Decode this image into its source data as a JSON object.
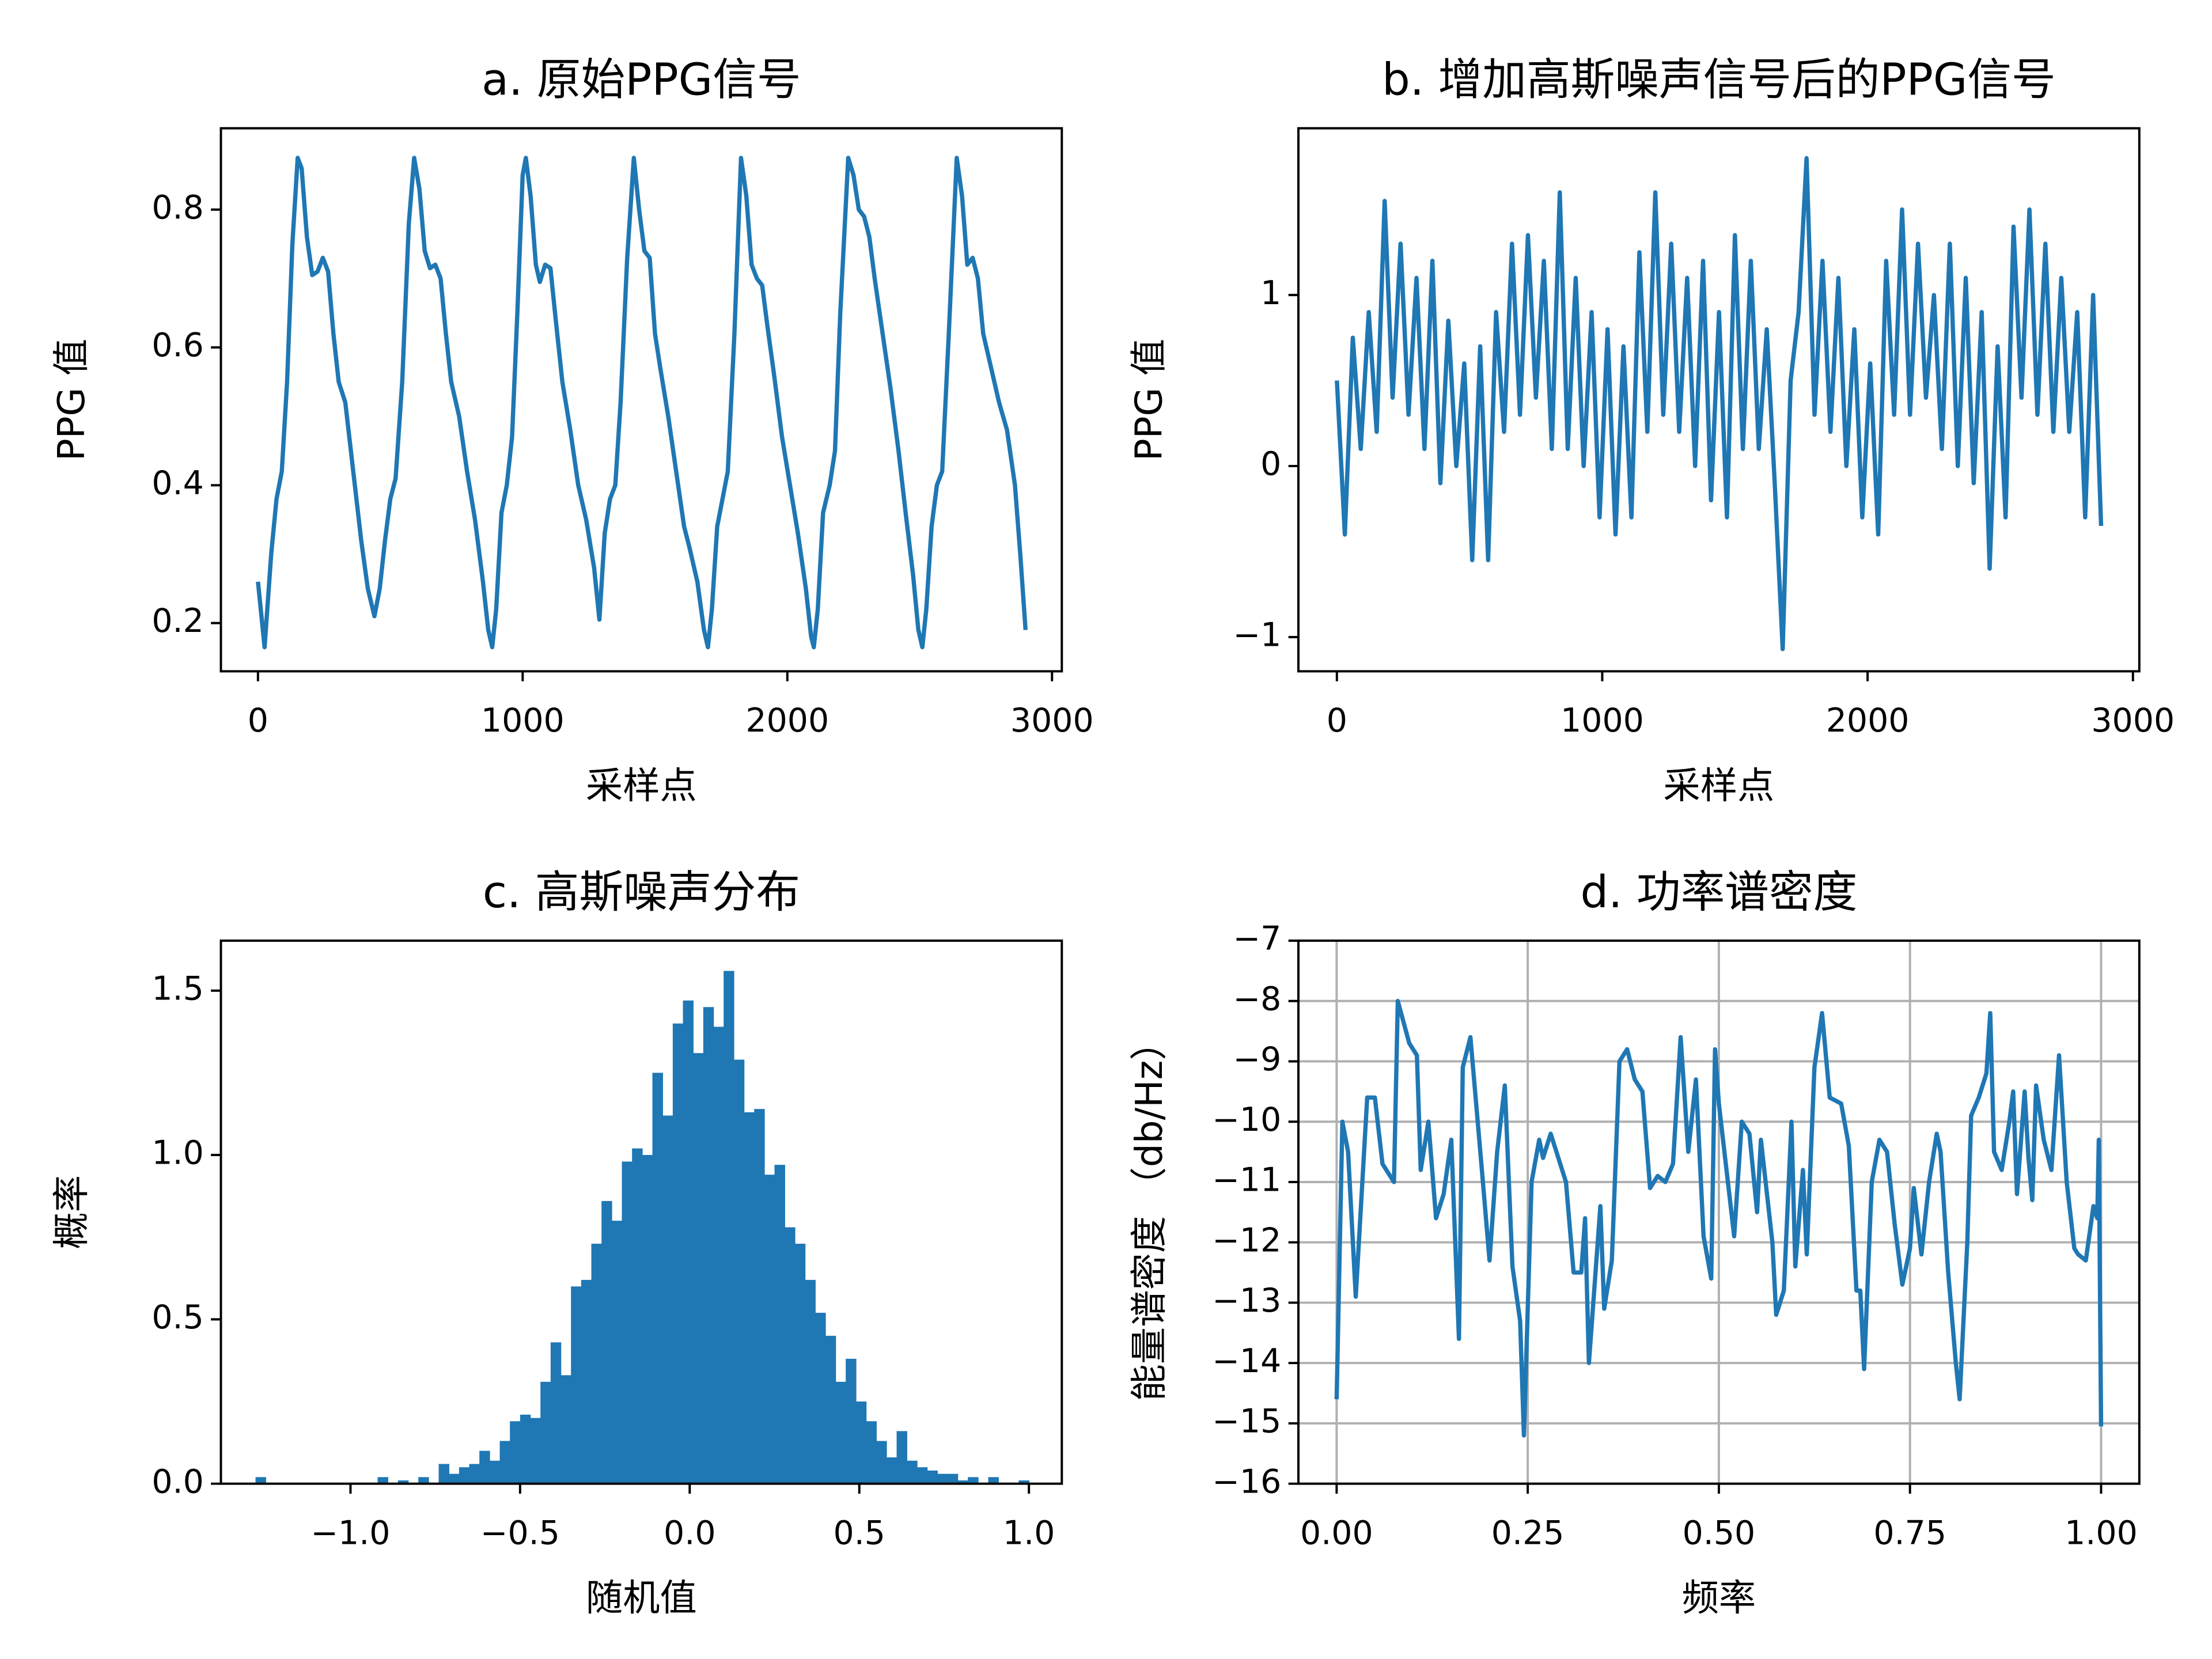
{
  "chart_data": [
    {
      "type": "line",
      "title": "a. 原始PPG信号",
      "xlabel": "采样点",
      "ylabel": "PPG 值",
      "color": "#1f77b4",
      "x": [
        0,
        25,
        50,
        70,
        90,
        110,
        130,
        150,
        165,
        185,
        205,
        225,
        245,
        265,
        285,
        305,
        330,
        360,
        390,
        415,
        440,
        460,
        480,
        500,
        520,
        545,
        570,
        590,
        610,
        630,
        650,
        670,
        690,
        710,
        730,
        760,
        790,
        820,
        850,
        870,
        885,
        900,
        920,
        940,
        960,
        980,
        1000,
        1012,
        1030,
        1050,
        1065,
        1085,
        1105,
        1125,
        1150,
        1180,
        1210,
        1240,
        1270,
        1290,
        1310,
        1330,
        1350,
        1370,
        1395,
        1420,
        1440,
        1460,
        1480,
        1500,
        1520,
        1550,
        1580,
        1610,
        1630,
        1660,
        1685,
        1700,
        1715,
        1735,
        1755,
        1775,
        1800,
        1825,
        1845,
        1865,
        1885,
        1905,
        1925,
        1950,
        1980,
        2010,
        2040,
        2070,
        2090,
        2100,
        2115,
        2135,
        2160,
        2180,
        2200,
        2230,
        2250,
        2270,
        2290,
        2310,
        2330,
        2360,
        2390,
        2420,
        2450,
        2475,
        2495,
        2510,
        2525,
        2545,
        2565,
        2585,
        2610,
        2640,
        2660,
        2680,
        2700,
        2720,
        2740,
        2770,
        2800,
        2830,
        2860,
        2880,
        2900
      ],
      "values": [
        0.26,
        0.165,
        0.3,
        0.38,
        0.42,
        0.55,
        0.75,
        0.875,
        0.86,
        0.76,
        0.705,
        0.71,
        0.73,
        0.71,
        0.62,
        0.55,
        0.52,
        0.42,
        0.32,
        0.25,
        0.21,
        0.25,
        0.32,
        0.38,
        0.41,
        0.55,
        0.78,
        0.875,
        0.83,
        0.74,
        0.715,
        0.72,
        0.7,
        0.62,
        0.55,
        0.5,
        0.42,
        0.35,
        0.26,
        0.19,
        0.165,
        0.22,
        0.36,
        0.4,
        0.47,
        0.65,
        0.85,
        0.875,
        0.82,
        0.72,
        0.695,
        0.72,
        0.715,
        0.64,
        0.55,
        0.48,
        0.4,
        0.35,
        0.28,
        0.205,
        0.33,
        0.38,
        0.4,
        0.52,
        0.73,
        0.875,
        0.8,
        0.74,
        0.73,
        0.62,
        0.57,
        0.5,
        0.42,
        0.34,
        0.31,
        0.26,
        0.19,
        0.165,
        0.22,
        0.34,
        0.38,
        0.42,
        0.62,
        0.875,
        0.82,
        0.72,
        0.7,
        0.69,
        0.63,
        0.56,
        0.47,
        0.4,
        0.33,
        0.25,
        0.18,
        0.165,
        0.22,
        0.36,
        0.4,
        0.45,
        0.65,
        0.875,
        0.85,
        0.8,
        0.79,
        0.76,
        0.7,
        0.62,
        0.54,
        0.45,
        0.35,
        0.27,
        0.19,
        0.165,
        0.22,
        0.34,
        0.4,
        0.42,
        0.62,
        0.875,
        0.82,
        0.72,
        0.73,
        0.7,
        0.62,
        0.57,
        0.52,
        0.48,
        0.4,
        0.3,
        0.19
      ],
      "xlim": [
        -140,
        3037
      ],
      "ylim": [
        0.13,
        0.918
      ],
      "xticks": [
        0,
        1000,
        2000,
        3000
      ],
      "yticks": [
        0.2,
        0.4,
        0.6,
        0.8
      ],
      "grid": false
    },
    {
      "type": "line",
      "title": "b. 增加高斯噪声信号后的PPG信号",
      "xlabel": "采样点",
      "ylabel": "PPG 值",
      "color": "#1f77b4",
      "x": [
        0,
        30,
        60,
        90,
        120,
        150,
        180,
        210,
        240,
        270,
        300,
        330,
        360,
        390,
        420,
        450,
        480,
        510,
        540,
        570,
        600,
        630,
        660,
        690,
        720,
        750,
        780,
        810,
        840,
        870,
        900,
        930,
        960,
        990,
        1020,
        1050,
        1080,
        1110,
        1140,
        1170,
        1200,
        1230,
        1260,
        1290,
        1320,
        1350,
        1380,
        1410,
        1440,
        1470,
        1500,
        1530,
        1560,
        1590,
        1620,
        1650,
        1680,
        1710,
        1740,
        1770,
        1800,
        1830,
        1860,
        1890,
        1920,
        1950,
        1980,
        2010,
        2040,
        2070,
        2100,
        2130,
        2160,
        2190,
        2220,
        2250,
        2280,
        2310,
        2340,
        2370,
        2400,
        2430,
        2460,
        2490,
        2520,
        2550,
        2580,
        2610,
        2640,
        2670,
        2700,
        2730,
        2760,
        2790,
        2820,
        2850,
        2880
      ],
      "values": [
        0.5,
        -0.4,
        0.75,
        0.1,
        0.9,
        0.2,
        1.55,
        0.4,
        1.3,
        0.3,
        1.1,
        0.1,
        1.2,
        -0.1,
        0.85,
        0.0,
        0.6,
        -0.55,
        0.7,
        -0.55,
        0.9,
        0.2,
        1.3,
        0.3,
        1.35,
        0.4,
        1.2,
        0.1,
        1.6,
        0.1,
        1.1,
        0.0,
        0.9,
        -0.3,
        0.8,
        -0.4,
        0.7,
        -0.3,
        1.25,
        0.2,
        1.6,
        0.3,
        1.3,
        0.2,
        1.1,
        0.0,
        1.2,
        -0.2,
        0.9,
        -0.3,
        1.35,
        0.1,
        1.2,
        0.1,
        0.8,
        -0.1,
        -1.07,
        0.5,
        0.9,
        1.8,
        0.3,
        1.2,
        0.2,
        1.1,
        0.0,
        0.8,
        -0.3,
        0.6,
        -0.4,
        1.2,
        0.3,
        1.5,
        0.3,
        1.3,
        0.4,
        1.0,
        0.1,
        1.3,
        0.0,
        1.1,
        -0.1,
        0.9,
        -0.6,
        0.7,
        -0.3,
        1.4,
        0.4,
        1.5,
        0.3,
        1.3,
        0.2,
        1.1,
        0.2,
        0.9,
        -0.3,
        1.0,
        -0.35
      ],
      "xlim": [
        -145,
        3024
      ],
      "ylim": [
        -1.2,
        1.975
      ],
      "xticks": [
        0,
        1000,
        2000,
        3000
      ],
      "yticks": [
        {
          "value": -1,
          "label": "−1"
        },
        0,
        1
      ],
      "grid": false
    },
    {
      "type": "histogram",
      "title": "c. 高斯噪声分布",
      "xlabel": "随机值",
      "ylabel": "概率",
      "color": "#1f77b4",
      "bins": [
        -1.28,
        -1.25,
        -1.22,
        -1.19,
        -1.16,
        -1.13,
        -1.1,
        -1.07,
        -1.04,
        -1.01,
        -0.98,
        -0.95,
        -0.92,
        -0.89,
        -0.86,
        -0.83,
        -0.8,
        -0.77,
        -0.74,
        -0.71,
        -0.68,
        -0.65,
        -0.62,
        -0.59,
        -0.56,
        -0.53,
        -0.5,
        -0.47,
        -0.44,
        -0.41,
        -0.38,
        -0.35,
        -0.32,
        -0.29,
        -0.26,
        -0.23,
        -0.2,
        -0.17,
        -0.14,
        -0.11,
        -0.08,
        -0.05,
        -0.02,
        0.01,
        0.04,
        0.07,
        0.1,
        0.13,
        0.16,
        0.19,
        0.22,
        0.25,
        0.28,
        0.31,
        0.34,
        0.37,
        0.4,
        0.43,
        0.46,
        0.49,
        0.52,
        0.55,
        0.58,
        0.61,
        0.64,
        0.67,
        0.7,
        0.73,
        0.76,
        0.79,
        0.82,
        0.85,
        0.88,
        0.91,
        0.94,
        0.97,
        1.0
      ],
      "values": [
        0.02,
        0,
        0,
        0,
        0,
        0,
        0,
        0,
        0,
        0,
        0,
        0,
        0.02,
        0,
        0.01,
        0,
        0.02,
        0,
        0.06,
        0.03,
        0.05,
        0.06,
        0.1,
        0.07,
        0.13,
        0.19,
        0.21,
        0.2,
        0.31,
        0.43,
        0.33,
        0.6,
        0.62,
        0.73,
        0.86,
        0.8,
        0.98,
        1.02,
        1.0,
        1.25,
        1.12,
        1.4,
        1.47,
        1.31,
        1.45,
        1.39,
        1.56,
        1.29,
        1.13,
        1.14,
        0.94,
        0.97,
        0.78,
        0.73,
        0.62,
        0.52,
        0.45,
        0.31,
        0.38,
        0.25,
        0.19,
        0.13,
        0.08,
        0.16,
        0.07,
        0.05,
        0.04,
        0.03,
        0.03,
        0.01,
        0.02,
        0,
        0.02,
        0,
        0,
        0.01
      ],
      "xlim": [
        -1.382,
        1.097
      ],
      "ylim": [
        0,
        1.652
      ],
      "xticks": [
        {
          "value": -1,
          "label": "−1.0"
        },
        {
          "value": -0.5,
          "label": "−0.5"
        },
        {
          "value": 0,
          "label": "0.0"
        },
        0.5,
        {
          "value": 1,
          "label": "1.0"
        }
      ],
      "yticks": [
        {
          "value": 0,
          "label": "0.0"
        },
        0.5,
        {
          "value": 1,
          "label": "1.0"
        },
        1.5
      ],
      "grid": false
    },
    {
      "type": "line",
      "title": "d. 功率谱密度",
      "xlabel": "频率",
      "ylabel": "能量谱密度 （db/Hz）",
      "color": "#1f77b4",
      "x": [
        0,
        0.0075,
        0.015,
        0.025,
        0.04,
        0.05,
        0.06,
        0.075,
        0.08,
        0.095,
        0.105,
        0.11,
        0.12,
        0.13,
        0.14,
        0.15,
        0.16,
        0.165,
        0.175,
        0.19,
        0.2,
        0.21,
        0.22,
        0.23,
        0.24,
        0.245,
        0.255,
        0.265,
        0.27,
        0.28,
        0.3,
        0.31,
        0.32,
        0.325,
        0.33,
        0.345,
        0.35,
        0.36,
        0.37,
        0.38,
        0.39,
        0.4,
        0.41,
        0.42,
        0.43,
        0.44,
        0.45,
        0.46,
        0.47,
        0.48,
        0.49,
        0.495,
        0.5,
        0.51,
        0.52,
        0.53,
        0.54,
        0.55,
        0.555,
        0.57,
        0.575,
        0.585,
        0.595,
        0.6,
        0.61,
        0.615,
        0.625,
        0.635,
        0.645,
        0.66,
        0.67,
        0.68,
        0.685,
        0.69,
        0.7,
        0.71,
        0.72,
        0.73,
        0.74,
        0.75,
        0.755,
        0.765,
        0.775,
        0.785,
        0.79,
        0.8,
        0.81,
        0.815,
        0.825,
        0.83,
        0.84,
        0.85,
        0.855,
        0.86,
        0.87,
        0.88,
        0.885,
        0.89,
        0.9,
        0.905,
        0.91,
        0.915,
        0.925,
        0.935,
        0.945,
        0.955,
        0.965,
        0.97,
        0.98,
        0.99,
        0.995,
        0.997,
        1.0
      ],
      "values": [
        -14.6,
        -10,
        -10.5,
        -12.9,
        -9.6,
        -9.6,
        -10.7,
        -11.0,
        -8.0,
        -8.7,
        -8.9,
        -10.8,
        -10,
        -11.6,
        -11.2,
        -10.3,
        -13.6,
        -9.1,
        -8.6,
        -10.8,
        -12.3,
        -10.5,
        -9.4,
        -12.4,
        -13.3,
        -15.2,
        -11,
        -10.3,
        -10.6,
        -10.2,
        -11,
        -12.5,
        -12.5,
        -11.6,
        -14,
        -11.4,
        -13.1,
        -12.3,
        -9.0,
        -8.8,
        -9.3,
        -9.5,
        -11.1,
        -10.9,
        -11,
        -10.7,
        -8.6,
        -10.5,
        -9.3,
        -11.9,
        -12.6,
        -8.8,
        -9.7,
        -10.8,
        -11.9,
        -10,
        -10.2,
        -11.5,
        -10.3,
        -12,
        -13.2,
        -12.8,
        -10,
        -12.4,
        -10.8,
        -12.2,
        -9.1,
        -8.2,
        -9.6,
        -9.7,
        -10.4,
        -12.8,
        -12.8,
        -14.1,
        -11,
        -10.3,
        -10.5,
        -11.7,
        -12.7,
        -12.1,
        -11.1,
        -12.2,
        -11,
        -10.2,
        -10.5,
        -12.5,
        -14,
        -14.6,
        -12,
        -9.9,
        -9.6,
        -9.2,
        -8.2,
        -10.5,
        -10.8,
        -10,
        -9.5,
        -11.2,
        -9.5,
        -10.6,
        -11.3,
        -9.4,
        -10.3,
        -10.8,
        -8.9,
        -11,
        -12.1,
        -12.2,
        -12.3,
        -11.4,
        -11.6,
        -10.3,
        -15.05
      ],
      "xlim": [
        -0.05,
        1.05
      ],
      "ylim": [
        -16,
        -7
      ],
      "xticks": [
        {
          "value": 0,
          "label": "0.00"
        },
        0.25,
        {
          "value": 0.5,
          "label": "0.50"
        },
        0.75,
        {
          "value": 1,
          "label": "1.00"
        }
      ],
      "yticks": [
        {
          "value": -16,
          "label": "−16"
        },
        {
          "value": -15,
          "label": "−15"
        },
        {
          "value": -14,
          "label": "−14"
        },
        {
          "value": -13,
          "label": "−13"
        },
        {
          "value": -12,
          "label": "−12"
        },
        {
          "value": -11,
          "label": "−11"
        },
        {
          "value": -10,
          "label": "−10"
        },
        {
          "value": -9,
          "label": "−9"
        },
        {
          "value": -8,
          "label": "−8"
        },
        {
          "value": -7,
          "label": "−7"
        }
      ],
      "grid": true
    }
  ]
}
